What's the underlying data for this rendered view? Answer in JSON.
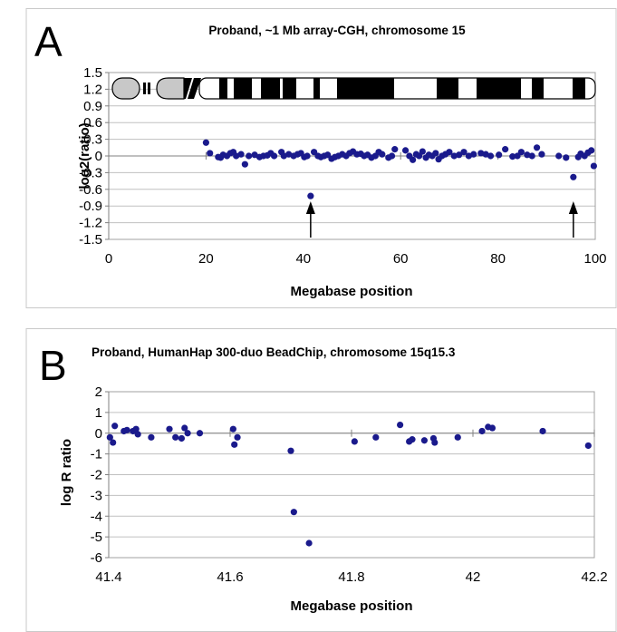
{
  "chart_data": [
    {
      "panel": "A",
      "type": "scatter",
      "title": "Proband, ~1 Mb array-CGH, chromosome 15",
      "xlabel": "Megabase position",
      "ylabel": "log2(ratio)",
      "xlim": [
        0,
        100
      ],
      "ylim": [
        -1.5,
        1.5
      ],
      "xticks": [
        "0",
        "20",
        "40",
        "60",
        "80",
        "100"
      ],
      "yticks": [
        "1.5",
        "1.2",
        "0.9",
        "0.6",
        "0.3",
        "0",
        "-0.3",
        "-0.6",
        "-0.9",
        "-1.2",
        "-1.5"
      ],
      "grid": true,
      "point_color": "#1a1a8c",
      "ideogram": "chromosome 15 banding ideogram across top of plot",
      "arrows_at_x": [
        41.5,
        95.5
      ],
      "series": [
        {
          "x": [
            20,
            20.8,
            22.5,
            23,
            23.5,
            24.3,
            25,
            25.6,
            26.2,
            27.2,
            28,
            28.8,
            30,
            31,
            31.8,
            32.6,
            33.3,
            34,
            35.5,
            36,
            37,
            38,
            38.8,
            39.5,
            40.2,
            40.8,
            41.5,
            42.2,
            43,
            43.6,
            44.3,
            45,
            45.8,
            46.5,
            47.2,
            48,
            48.8,
            49.5,
            50.2,
            51,
            51.8,
            52.5,
            53.2,
            54,
            54.8,
            55.5,
            56.2,
            57.5,
            58.2,
            58.8,
            61,
            61.8,
            62.5,
            63.2,
            63.8,
            64.5,
            65.2,
            65.8,
            66.5,
            67.2,
            67.8,
            68.5,
            69.2,
            70,
            71,
            72,
            73,
            74,
            75,
            76.5,
            77.5,
            78.5,
            80.2,
            81.5,
            83,
            84,
            84.8,
            86,
            87,
            88,
            89,
            92.5,
            94,
            95.5,
            96.5,
            97,
            97.8,
            98.5,
            99.2,
            99.7
          ],
          "y": [
            0.24,
            0.05,
            -0.02,
            -0.03,
            0.02,
            0.0,
            0.05,
            0.07,
            0.0,
            0.03,
            -0.15,
            0.0,
            0.02,
            -0.02,
            0.0,
            0.01,
            0.05,
            0.0,
            0.07,
            0.0,
            0.03,
            0.0,
            0.03,
            0.05,
            -0.02,
            0.0,
            -0.72,
            0.07,
            0.0,
            -0.02,
            0.0,
            0.02,
            -0.05,
            -0.02,
            0.0,
            0.03,
            0.0,
            0.05,
            0.08,
            0.03,
            0.04,
            0.0,
            0.02,
            -0.03,
            0.0,
            0.07,
            0.03,
            -0.03,
            0.0,
            0.12,
            0.1,
            0.0,
            -0.07,
            0.03,
            0.0,
            0.08,
            -0.03,
            0.02,
            0.0,
            0.05,
            -0.06,
            0.0,
            0.03,
            0.07,
            0.0,
            0.02,
            0.07,
            0.0,
            0.03,
            0.05,
            0.03,
            0.0,
            0.02,
            0.12,
            -0.01,
            0.0,
            0.07,
            0.02,
            0.0,
            0.15,
            0.03,
            0.0,
            -0.03,
            -0.38,
            -0.02,
            0.04,
            0.0,
            0.06,
            0.1,
            -0.18
          ]
        }
      ]
    },
    {
      "panel": "B",
      "type": "scatter",
      "title": "Proband, HumanHap 300-duo BeadChip, chromosome 15q15.3",
      "xlabel": "Megabase position",
      "ylabel": "log R ratio",
      "xlim": [
        41.4,
        42.2
      ],
      "ylim": [
        -6,
        2
      ],
      "xticks": [
        "41.4",
        "41.6",
        "41.8",
        "42",
        "42.2"
      ],
      "yticks": [
        "2",
        "1",
        "0",
        "-1",
        "-2",
        "-3",
        "-4",
        "-5",
        "-6"
      ],
      "grid": true,
      "point_color": "#1a1a8c",
      "series": [
        {
          "x": [
            41.402,
            41.407,
            41.41,
            41.425,
            41.43,
            41.44,
            41.445,
            41.448,
            41.47,
            41.5,
            41.51,
            41.52,
            41.525,
            41.53,
            41.55,
            41.605,
            41.607,
            41.612,
            41.7,
            41.705,
            41.73,
            41.805,
            41.84,
            41.88,
            41.895,
            41.9,
            41.92,
            41.935,
            41.937,
            41.975,
            42.015,
            42.025,
            42.032,
            42.115,
            42.19
          ],
          "y": [
            -0.2,
            -0.45,
            0.35,
            0.1,
            0.15,
            0.1,
            0.2,
            -0.05,
            -0.2,
            0.2,
            -0.2,
            -0.25,
            0.25,
            0.0,
            0.0,
            0.2,
            -0.55,
            -0.2,
            -0.85,
            -3.8,
            -5.3,
            -0.4,
            -0.2,
            0.4,
            -0.4,
            -0.3,
            -0.35,
            -0.25,
            -0.45,
            -0.2,
            0.1,
            0.3,
            0.25,
            0.1,
            -0.6
          ]
        }
      ]
    }
  ]
}
